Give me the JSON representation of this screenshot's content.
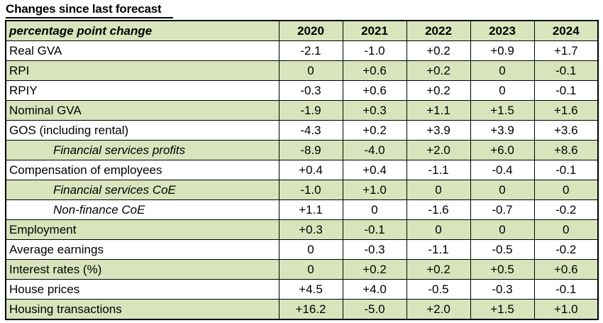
{
  "title": "Changes since last forecast",
  "header": {
    "label": "percentage point change",
    "years": [
      "2020",
      "2021",
      "2022",
      "2023",
      "2024"
    ]
  },
  "rows": [
    {
      "label": "Real GVA",
      "indent": false,
      "values": [
        "-2.1",
        "-1.0",
        "+0.2",
        "+0.9",
        "+1.7"
      ]
    },
    {
      "label": "RPI",
      "indent": false,
      "values": [
        "0",
        "+0.6",
        "+0.2",
        "0",
        "-0.1"
      ]
    },
    {
      "label": "RPIY",
      "indent": false,
      "values": [
        "-0.3",
        "+0.6",
        "+0.2",
        "0",
        "-0.1"
      ]
    },
    {
      "label": "Nominal GVA",
      "indent": false,
      "values": [
        "-1.9",
        "+0.3",
        "+1.1",
        "+1.5",
        "+1.6"
      ]
    },
    {
      "label": "GOS (including rental)",
      "indent": false,
      "values": [
        "-4.3",
        "+0.2",
        "+3.9",
        "+3.9",
        "+3.6"
      ]
    },
    {
      "label": "Financial services profits",
      "indent": true,
      "values": [
        "-8.9",
        "-4.0",
        "+2.0",
        "+6.0",
        "+8.6"
      ]
    },
    {
      "label": "Compensation of employees",
      "indent": false,
      "values": [
        "+0.4",
        "+0.4",
        "-1.1",
        "-0.4",
        "-0.1"
      ]
    },
    {
      "label": "Financial services CoE",
      "indent": true,
      "values": [
        "-1.0",
        "+1.0",
        "0",
        "0",
        "0"
      ]
    },
    {
      "label": "Non-finance CoE",
      "indent": true,
      "values": [
        "+1.1",
        "0",
        "-1.6",
        "-0.7",
        "-0.2"
      ]
    },
    {
      "label": "Employment",
      "indent": false,
      "values": [
        "+0.3",
        "-0.1",
        "0",
        "0",
        "0"
      ]
    },
    {
      "label": "Average earnings",
      "indent": false,
      "values": [
        "0",
        "-0.3",
        "-1.1",
        "-0.5",
        "-0.2"
      ]
    },
    {
      "label": "Interest rates (%)",
      "indent": false,
      "values": [
        "0",
        "+0.2",
        "+0.2",
        "+0.5",
        "+0.6"
      ]
    },
    {
      "label": "House prices",
      "indent": false,
      "values": [
        "+4.5",
        "+4.0",
        "-0.5",
        "-0.3",
        "-0.1"
      ]
    },
    {
      "label": "Housing transactions",
      "indent": false,
      "values": [
        "+16.2",
        "-5.0",
        "+2.0",
        "+1.5",
        "+1.0"
      ]
    }
  ],
  "colors": {
    "row_green": "#d8e4bc",
    "row_white": "#ffffff",
    "border": "#000000"
  }
}
